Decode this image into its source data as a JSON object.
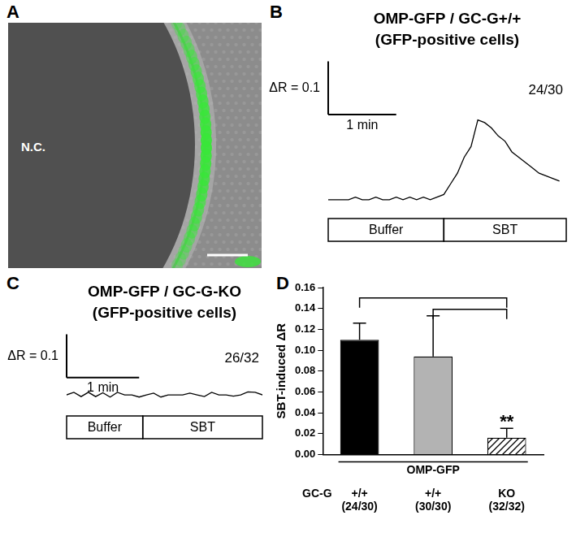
{
  "image": {
    "panel": "A",
    "label": "N.C."
  },
  "chart_data": [
    {
      "type": "line",
      "panel": "B",
      "title": "OMP-GFP / GC-G+/+",
      "subtitle": "(GFP-positive cells)",
      "count_label": "24/30",
      "x": [
        0,
        0.1,
        0.2,
        0.3,
        0.4,
        0.5,
        0.6,
        0.7,
        0.8,
        0.9,
        1.0,
        1.1,
        1.2,
        1.3,
        1.4,
        1.5,
        1.6,
        1.7,
        1.8,
        1.9,
        2.0,
        2.1,
        2.2,
        2.3,
        2.4,
        2.5,
        2.6,
        2.7,
        2.8,
        2.9,
        3.0,
        3.1,
        3.2,
        3.3,
        3.4
      ],
      "values": [
        0,
        0,
        0,
        0,
        0.005,
        0,
        0,
        0.005,
        0,
        0,
        0.005,
        0,
        0.005,
        0,
        0.005,
        0,
        0.005,
        0.01,
        0.03,
        0.05,
        0.08,
        0.1,
        0.15,
        0.145,
        0.135,
        0.12,
        0.11,
        0.09,
        0.08,
        0.07,
        0.06,
        0.05,
        0.045,
        0.04,
        0.035
      ],
      "color": "#000000",
      "xlim": [
        0,
        3.5
      ],
      "ylim": [
        -0.02,
        0.26
      ],
      "tick_labels": false,
      "grid": false,
      "scale_bar": {
        "x": 1,
        "x_label": "1 min",
        "y": 0.1,
        "y_label": "ΔR = 0.1"
      },
      "stimuli": [
        {
          "label": "Buffer",
          "start": 0,
          "end": 1.7
        },
        {
          "label": "SBT",
          "start": 1.7,
          "end": 3.5
        }
      ]
    },
    {
      "type": "line",
      "panel": "C",
      "title": "OMP-GFP / GC-G-KO",
      "subtitle": "(GFP-positive cells)",
      "count_label": "26/32",
      "x": [
        0,
        0.1,
        0.2,
        0.3,
        0.4,
        0.5,
        0.6,
        0.7,
        0.8,
        0.9,
        1.0,
        1.1,
        1.2,
        1.3,
        1.4,
        1.5,
        1.6,
        1.7,
        1.8,
        1.9,
        2.0,
        2.1,
        2.2,
        2.3,
        2.4,
        2.5,
        2.6,
        2.7
      ],
      "values": [
        0,
        0.006,
        -0.004,
        0.006,
        -0.004,
        0.005,
        -0.005,
        0.006,
        0,
        0,
        -0.005,
        0,
        0.004,
        -0.005,
        0,
        0,
        0,
        0.004,
        0,
        -0.004,
        0.006,
        0,
        0,
        -0.003,
        0,
        0.007,
        0.006,
        0
      ],
      "color": "#000000",
      "xlim": [
        0,
        2.7
      ],
      "ylim": [
        -0.03,
        0.14
      ],
      "tick_labels": false,
      "grid": false,
      "scale_bar": {
        "x": 1,
        "x_label": "1 min",
        "y": 0.1,
        "y_label": "ΔR = 0.1"
      },
      "stimuli": [
        {
          "label": "Buffer",
          "start": 0,
          "end": 1.05
        },
        {
          "label": "SBT",
          "start": 1.05,
          "end": 2.7
        }
      ]
    },
    {
      "type": "bar",
      "panel": "D",
      "y_label": "SBT-induced ΔR",
      "group_label": "OMP-GFP",
      "row_label": "GC-G",
      "categories": [
        "+/+",
        "+/+",
        "KO"
      ],
      "category_notes": [
        "(24/30)",
        "(30/30)",
        "(32/32)"
      ],
      "values": [
        0.11,
        0.094,
        0.016
      ],
      "errors": [
        0.016,
        0.039,
        0.009
      ],
      "colors": [
        "#000000",
        "#b3b3b3",
        "#ffffff"
      ],
      "ylim": [
        0,
        0.16
      ],
      "yticks": [
        {
          "value": 0,
          "label": "0.00"
        },
        {
          "value": 0.02,
          "label": "0.02"
        },
        {
          "value": 0.04,
          "label": "0.04"
        },
        {
          "value": 0.06,
          "label": "0.06"
        },
        {
          "value": 0.08,
          "label": "0.08"
        },
        {
          "value": 0.1,
          "label": "0.10"
        },
        {
          "value": 0.12,
          "label": "0.12"
        },
        {
          "value": 0.14,
          "label": "0.14"
        },
        {
          "value": 0.16,
          "label": "0.16"
        }
      ],
      "grid": false,
      "brackets": [
        {
          "from": 0,
          "to": 2
        },
        {
          "from": 1,
          "to": 2
        }
      ],
      "annotations": [
        {
          "category": 2,
          "text": "**"
        }
      ]
    }
  ]
}
